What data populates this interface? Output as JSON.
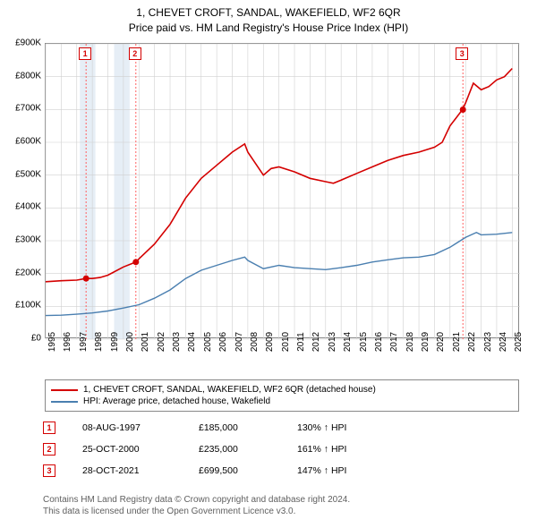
{
  "title_line1": "1, CHEVET CROFT, SANDAL, WAKEFIELD, WF2 6QR",
  "title_line2": "Price paid vs. HM Land Registry's House Price Index (HPI)",
  "chart": {
    "type": "line",
    "x_min": 1995,
    "x_max": 2025.5,
    "y_min": 0,
    "y_max": 900000,
    "y_ticks": [
      0,
      100000,
      200000,
      300000,
      400000,
      500000,
      600000,
      700000,
      800000,
      900000
    ],
    "y_tick_labels": [
      "£0",
      "£100K",
      "£200K",
      "£300K",
      "£400K",
      "£500K",
      "£600K",
      "£700K",
      "£800K",
      "£900K"
    ],
    "x_ticks": [
      1995,
      1996,
      1997,
      1998,
      1999,
      2000,
      2001,
      2002,
      2003,
      2004,
      2005,
      2006,
      2007,
      2008,
      2009,
      2010,
      2011,
      2012,
      2013,
      2014,
      2015,
      2016,
      2017,
      2018,
      2019,
      2020,
      2021,
      2022,
      2023,
      2024,
      2025
    ],
    "grid_color": "#d0d0d0",
    "axis_color": "#888888",
    "background_color": "#ffffff",
    "shade_color": "#e6eef6",
    "shade_ranges": [
      [
        1997.2,
        1998.2
      ],
      [
        1999.4,
        2000.4
      ]
    ],
    "series": [
      {
        "name": "price_paid",
        "color": "#d40000",
        "width": 1.6,
        "points": [
          [
            1995,
            175000
          ],
          [
            1996,
            178000
          ],
          [
            1997,
            180000
          ],
          [
            1997.6,
            185000
          ],
          [
            1998,
            185000
          ],
          [
            1998.5,
            188000
          ],
          [
            1999,
            195000
          ],
          [
            2000,
            220000
          ],
          [
            2000.8,
            235000
          ],
          [
            2001,
            245000
          ],
          [
            2002,
            290000
          ],
          [
            2003,
            350000
          ],
          [
            2004,
            430000
          ],
          [
            2005,
            490000
          ],
          [
            2006,
            530000
          ],
          [
            2007,
            570000
          ],
          [
            2007.8,
            595000
          ],
          [
            2008,
            570000
          ],
          [
            2008.5,
            535000
          ],
          [
            2009,
            500000
          ],
          [
            2009.5,
            520000
          ],
          [
            2010,
            525000
          ],
          [
            2011,
            510000
          ],
          [
            2012,
            490000
          ],
          [
            2013,
            480000
          ],
          [
            2013.5,
            475000
          ],
          [
            2014,
            485000
          ],
          [
            2015,
            505000
          ],
          [
            2016,
            525000
          ],
          [
            2017,
            545000
          ],
          [
            2018,
            560000
          ],
          [
            2019,
            570000
          ],
          [
            2020,
            585000
          ],
          [
            2020.5,
            600000
          ],
          [
            2021,
            650000
          ],
          [
            2021.8,
            699500
          ],
          [
            2022,
            720000
          ],
          [
            2022.5,
            780000
          ],
          [
            2023,
            760000
          ],
          [
            2023.5,
            770000
          ],
          [
            2024,
            790000
          ],
          [
            2024.5,
            800000
          ],
          [
            2025,
            825000
          ]
        ]
      },
      {
        "name": "hpi",
        "color": "#4a7fb0",
        "width": 1.4,
        "points": [
          [
            1995,
            72000
          ],
          [
            1996,
            73000
          ],
          [
            1997,
            76000
          ],
          [
            1998,
            80000
          ],
          [
            1999,
            86000
          ],
          [
            2000,
            95000
          ],
          [
            2001,
            105000
          ],
          [
            2002,
            125000
          ],
          [
            2003,
            150000
          ],
          [
            2004,
            185000
          ],
          [
            2005,
            210000
          ],
          [
            2006,
            225000
          ],
          [
            2007,
            240000
          ],
          [
            2007.8,
            250000
          ],
          [
            2008,
            240000
          ],
          [
            2009,
            215000
          ],
          [
            2010,
            225000
          ],
          [
            2011,
            218000
          ],
          [
            2012,
            215000
          ],
          [
            2013,
            212000
          ],
          [
            2014,
            218000
          ],
          [
            2015,
            225000
          ],
          [
            2016,
            235000
          ],
          [
            2017,
            242000
          ],
          [
            2018,
            248000
          ],
          [
            2019,
            250000
          ],
          [
            2020,
            258000
          ],
          [
            2021,
            280000
          ],
          [
            2022,
            310000
          ],
          [
            2022.7,
            325000
          ],
          [
            2023,
            318000
          ],
          [
            2024,
            320000
          ],
          [
            2025,
            325000
          ]
        ]
      }
    ],
    "markers": [
      {
        "n": "1",
        "x": 1997.6,
        "y": 185000,
        "color": "#d40000",
        "vline_color": "#ff6060"
      },
      {
        "n": "2",
        "x": 2000.8,
        "y": 235000,
        "color": "#d40000",
        "vline_color": "#ff6060"
      },
      {
        "n": "3",
        "x": 2021.83,
        "y": 699500,
        "color": "#d40000",
        "vline_color": "#ff6060"
      }
    ],
    "label_fontsize": 10
  },
  "legend": [
    {
      "color": "#d40000",
      "label": "1, CHEVET CROFT, SANDAL, WAKEFIELD, WF2 6QR (detached house)"
    },
    {
      "color": "#4a7fb0",
      "label": "HPI: Average price, detached house, Wakefield"
    }
  ],
  "sales": [
    {
      "n": "1",
      "color": "#d40000",
      "date": "08-AUG-1997",
      "price": "£185,000",
      "pct": "130% ↑ HPI"
    },
    {
      "n": "2",
      "color": "#d40000",
      "date": "25-OCT-2000",
      "price": "£235,000",
      "pct": "161% ↑ HPI"
    },
    {
      "n": "3",
      "color": "#d40000",
      "date": "28-OCT-2021",
      "price": "£699,500",
      "pct": "147% ↑ HPI"
    }
  ],
  "footer_line1": "Contains HM Land Registry data © Crown copyright and database right 2024.",
  "footer_line2": "This data is licensed under the Open Government Licence v3.0."
}
